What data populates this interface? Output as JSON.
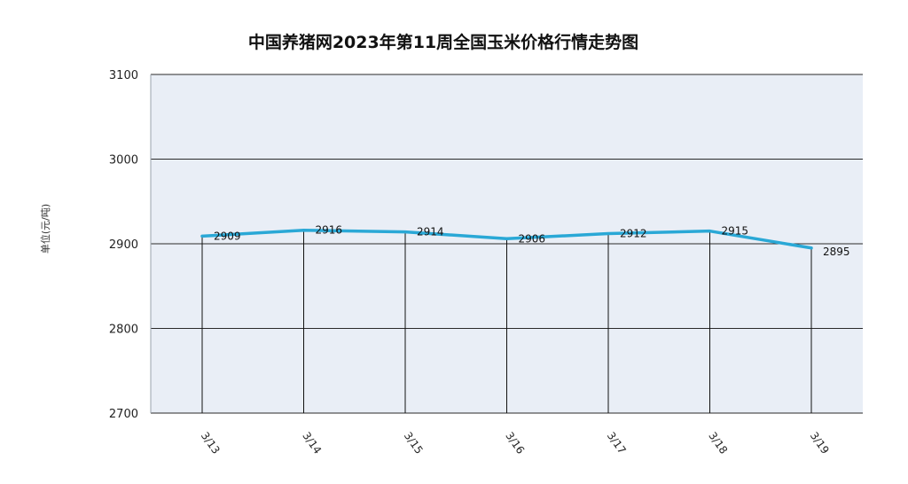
{
  "chart_data": {
    "type": "line",
    "title": "中国养猪网2023年第11周全国玉米价格行情走势图",
    "ylabel": "单位(元/吨)",
    "xlabel": "",
    "categories": [
      "3/13",
      "3/14",
      "3/15",
      "3/16",
      "3/17",
      "3/18",
      "3/19"
    ],
    "values": [
      2909,
      2916,
      2914,
      2906,
      2912,
      2915,
      2895
    ],
    "ylim": [
      2700,
      3100
    ],
    "yticks": [
      "3100",
      "3000",
      "2900",
      "2800",
      "2700"
    ],
    "data_labels": [
      "2909",
      "2916",
      "2914",
      "2906",
      "2912",
      "2915",
      "2895"
    ],
    "grid": true,
    "legend": "none",
    "colors": {
      "line": "#2aa8d6",
      "plot_background": "#e9eef6",
      "grid": "#2a2a2a",
      "drop_line": "#111111"
    }
  }
}
